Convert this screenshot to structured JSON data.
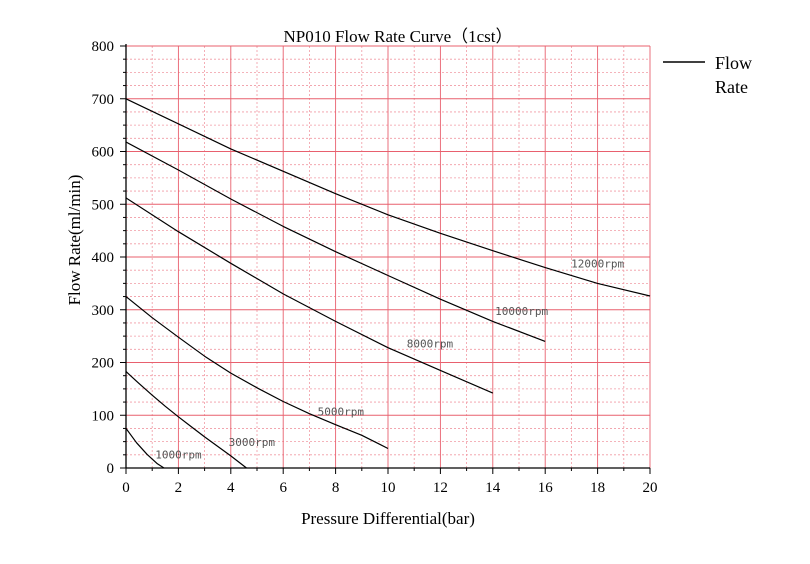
{
  "chart_data": {
    "type": "line",
    "title": "NP010 Flow Rate Curve（1cst）",
    "xlabel": "Pressure Differential(bar)",
    "ylabel": "Flow Rate(ml/min)",
    "xlim": [
      0,
      20
    ],
    "ylim": [
      0,
      800
    ],
    "x_ticks": [
      0,
      2,
      4,
      6,
      8,
      10,
      12,
      14,
      16,
      18,
      20
    ],
    "y_ticks": [
      0,
      100,
      200,
      300,
      400,
      500,
      600,
      700,
      800
    ],
    "x_tick_labels": [
      "0",
      "2",
      "4",
      "6",
      "8",
      "10",
      "12",
      "14",
      "16",
      "18",
      "20"
    ],
    "y_tick_labels": [
      "0",
      "100",
      "200",
      "300",
      "400",
      "500",
      "600",
      "700",
      "800"
    ],
    "legend": {
      "label": "Flow Rate",
      "line1": "Flow",
      "line2": "Rate",
      "position": "top-right-outside"
    },
    "grid": true,
    "colors": {
      "major_grid": "#e8606e",
      "minor_grid": "#f19aa4",
      "line": "#000000",
      "axis": "#000000",
      "label": "#555555"
    },
    "series": [
      {
        "name": "1000rpm",
        "label": "1000rpm",
        "x": [
          0,
          0.4,
          0.8,
          1.2,
          1.45
        ],
        "y": [
          75,
          48,
          26,
          8,
          0
        ]
      },
      {
        "name": "3000rpm",
        "label": "3000rpm",
        "x": [
          0,
          0.5,
          1,
          1.5,
          2,
          2.5,
          3,
          3.5,
          4,
          4.6
        ],
        "y": [
          183,
          160,
          138,
          117,
          97,
          78,
          59,
          41,
          23,
          0
        ]
      },
      {
        "name": "5000rpm",
        "label": "5000rpm",
        "x": [
          0,
          1,
          2,
          3,
          4,
          5,
          6,
          7,
          8,
          9,
          10
        ],
        "y": [
          325,
          285,
          248,
          212,
          180,
          152,
          126,
          103,
          82,
          62,
          37
        ]
      },
      {
        "name": "8000rpm",
        "label": "8000rpm",
        "x": [
          0,
          2,
          4,
          6,
          8,
          10,
          12,
          14
        ],
        "y": [
          512,
          448,
          388,
          330,
          278,
          228,
          185,
          142
        ]
      },
      {
        "name": "10000rpm",
        "label": "10000rpm",
        "x": [
          0,
          2,
          4,
          6,
          8,
          10,
          12,
          14,
          16
        ],
        "y": [
          618,
          565,
          510,
          458,
          410,
          365,
          320,
          278,
          240
        ]
      },
      {
        "name": "12000rpm",
        "label": "12000rpm",
        "x": [
          0,
          4,
          8,
          10,
          12,
          14,
          16,
          18,
          20
        ],
        "y": [
          700,
          605,
          520,
          480,
          445,
          412,
          380,
          350,
          326
        ]
      }
    ],
    "annotations": [
      {
        "text": "1000rpm",
        "x": 2.0,
        "y": 18
      },
      {
        "text": "3000rpm",
        "x": 4.8,
        "y": 42
      },
      {
        "text": "5000rpm",
        "x": 8.2,
        "y": 100
      },
      {
        "text": "8000rpm",
        "x": 11.6,
        "y": 228
      },
      {
        "text": "10000rpm",
        "x": 15.1,
        "y": 290
      },
      {
        "text": "12000rpm",
        "x": 18.0,
        "y": 380
      }
    ]
  }
}
